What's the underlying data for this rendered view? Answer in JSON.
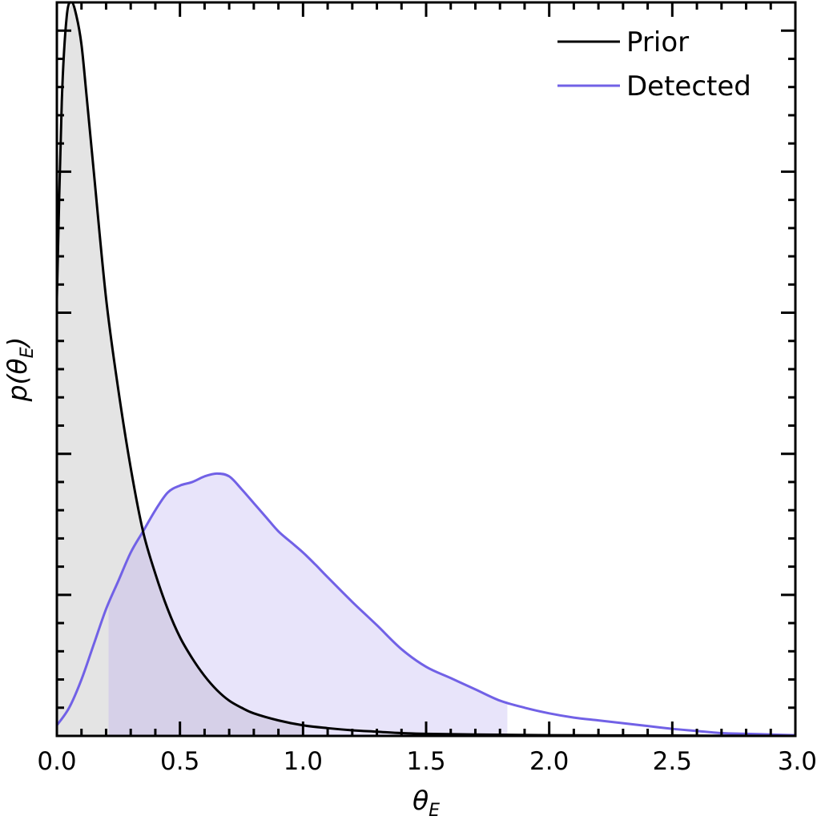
{
  "chart_data": {
    "type": "area",
    "xlabel": "θ",
    "xlabel_sub": "E",
    "ylabel_prefix": "p(θ",
    "ylabel_sub": "E",
    "ylabel_suffix": ")",
    "xlim": [
      0.0,
      3.0
    ],
    "ylim": [
      0.0,
      1.04
    ],
    "x_ticks": [
      "0.0",
      "0.5",
      "1.0",
      "1.5",
      "2.0",
      "2.5",
      "3.0"
    ],
    "y_tick_labels_shown": false,
    "grid": false,
    "legend_placement": "top-right",
    "colors": {
      "prior": "#000000",
      "detected": "#7161e6",
      "prior_fill": "#e4e4e4",
      "detected_fill": "#e8e4fa",
      "overlap_fill": "#d6d0e8"
    },
    "series": [
      {
        "name": "Prior",
        "fill_range": [
          0.0,
          1.0
        ],
        "points": [
          [
            0.0,
            0.62
          ],
          [
            0.02,
            0.9
          ],
          [
            0.04,
            1.02
          ],
          [
            0.06,
            1.04
          ],
          [
            0.08,
            1.02
          ],
          [
            0.1,
            0.98
          ],
          [
            0.12,
            0.91
          ],
          [
            0.15,
            0.8
          ],
          [
            0.2,
            0.62
          ],
          [
            0.25,
            0.49
          ],
          [
            0.3,
            0.38
          ],
          [
            0.35,
            0.29
          ],
          [
            0.4,
            0.23
          ],
          [
            0.45,
            0.18
          ],
          [
            0.5,
            0.14
          ],
          [
            0.55,
            0.11
          ],
          [
            0.6,
            0.085
          ],
          [
            0.65,
            0.065
          ],
          [
            0.7,
            0.05
          ],
          [
            0.75,
            0.04
          ],
          [
            0.8,
            0.032
          ],
          [
            0.9,
            0.022
          ],
          [
            1.0,
            0.015
          ],
          [
            1.1,
            0.011
          ],
          [
            1.2,
            0.008
          ],
          [
            1.3,
            0.006
          ],
          [
            1.4,
            0.004
          ],
          [
            1.5,
            0.003
          ],
          [
            1.7,
            0.002
          ],
          [
            2.0,
            0.001
          ],
          [
            2.5,
            0.0005
          ],
          [
            3.0,
            0.0
          ]
        ]
      },
      {
        "name": "Detected",
        "fill_range": [
          0.21,
          1.83
        ],
        "points": [
          [
            0.0,
            0.015
          ],
          [
            0.05,
            0.04
          ],
          [
            0.1,
            0.08
          ],
          [
            0.15,
            0.13
          ],
          [
            0.2,
            0.18
          ],
          [
            0.25,
            0.22
          ],
          [
            0.3,
            0.26
          ],
          [
            0.35,
            0.29
          ],
          [
            0.4,
            0.32
          ],
          [
            0.45,
            0.345
          ],
          [
            0.5,
            0.355
          ],
          [
            0.55,
            0.36
          ],
          [
            0.6,
            0.368
          ],
          [
            0.65,
            0.372
          ],
          [
            0.7,
            0.368
          ],
          [
            0.75,
            0.35
          ],
          [
            0.8,
            0.33
          ],
          [
            0.85,
            0.31
          ],
          [
            0.9,
            0.29
          ],
          [
            0.95,
            0.275
          ],
          [
            1.0,
            0.26
          ],
          [
            1.05,
            0.243
          ],
          [
            1.1,
            0.225
          ],
          [
            1.2,
            0.19
          ],
          [
            1.3,
            0.157
          ],
          [
            1.4,
            0.123
          ],
          [
            1.5,
            0.098
          ],
          [
            1.6,
            0.082
          ],
          [
            1.7,
            0.066
          ],
          [
            1.8,
            0.05
          ],
          [
            1.9,
            0.04
          ],
          [
            2.0,
            0.032
          ],
          [
            2.1,
            0.026
          ],
          [
            2.2,
            0.022
          ],
          [
            2.3,
            0.018
          ],
          [
            2.4,
            0.014
          ],
          [
            2.5,
            0.01
          ],
          [
            2.6,
            0.007
          ],
          [
            2.7,
            0.004
          ],
          [
            2.8,
            0.003
          ],
          [
            2.9,
            0.002
          ],
          [
            3.0,
            0.001
          ]
        ]
      }
    ]
  }
}
